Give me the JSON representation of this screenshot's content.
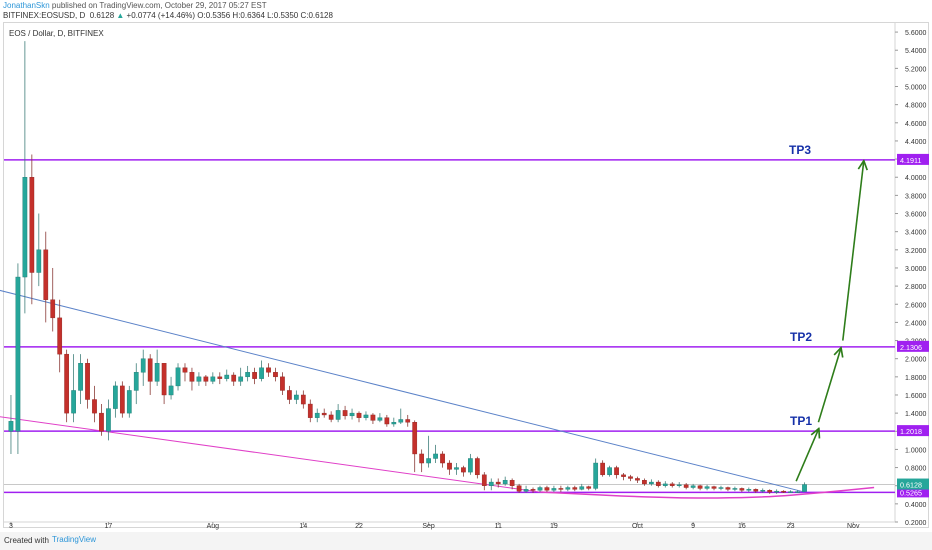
{
  "header": {
    "author": "JonathanSkn",
    "published": " published on TradingView.com, October 29, 2017 05:27 EST",
    "symbol": "BITFINEX:EOSUSD, D",
    "last": "0.6128",
    "change": "+0.0774 (+14.46%)",
    "ohlc": "O:0.5356 H:0.6364 L:0.5350 C:0.6128"
  },
  "footer": {
    "created": "Created with",
    "brand": "TradingView"
  },
  "colors": {
    "up": "#26a69a",
    "down": "#c4302b",
    "level": "#a020f0",
    "wedge_upper": "#5b82c8",
    "wedge_lower": "#e040c8",
    "arrow": "#2e7d1a",
    "tp_text": "#1530a8"
  },
  "chart_data": {
    "type": "candlestick",
    "title": "EOS / Dollar, D, BITFINEX",
    "ylim": [
      0.2,
      5.7
    ],
    "y_ticks": [
      0.2,
      0.4,
      0.6,
      0.8,
      1.0,
      1.2,
      1.4,
      1.6,
      1.8,
      2.0,
      2.2,
      2.4,
      2.6,
      2.8,
      3.0,
      3.2,
      3.4,
      3.6,
      3.8,
      4.0,
      4.2,
      4.4,
      4.6,
      4.8,
      5.0,
      5.2,
      5.4,
      5.6
    ],
    "y_tick_labels": [
      "0.2000",
      "0.4000",
      "0.6000",
      "0.8000",
      "1.0000",
      "1.2000",
      "1.4000",
      "1.6000",
      "1.8000",
      "2.0000",
      "2.2000",
      "2.4000",
      "2.6000",
      "2.8000",
      "3.0000",
      "3.2000",
      "3.4000",
      "3.6000",
      "3.8000",
      "4.0000",
      "4.2000",
      "4.4000",
      "4.6000",
      "4.8000",
      "5.0000",
      "5.2000",
      "5.4000",
      "5.6000"
    ],
    "x_range": [
      -1,
      127
    ],
    "x_ticks": [
      {
        "label": "3",
        "x": 0
      },
      {
        "label": "17",
        "x": 14
      },
      {
        "label": "Aug",
        "x": 29
      },
      {
        "label": "14",
        "x": 42
      },
      {
        "label": "22",
        "x": 50
      },
      {
        "label": "Sep",
        "x": 60
      },
      {
        "label": "11",
        "x": 70
      },
      {
        "label": "19",
        "x": 78
      },
      {
        "label": "Oct",
        "x": 90
      },
      {
        "label": "9",
        "x": 98
      },
      {
        "label": "16",
        "x": 105
      },
      {
        "label": "23",
        "x": 112
      },
      {
        "label": "Nov",
        "x": 121
      }
    ],
    "candles": [
      [
        1.2,
        1.31,
        1.6,
        0.95
      ],
      [
        1.2,
        2.9,
        3.05,
        0.95
      ],
      [
        2.9,
        4.0,
        5.5,
        2.5
      ],
      [
        4.0,
        2.95,
        4.25,
        2.6
      ],
      [
        2.95,
        3.2,
        3.6,
        2.8
      ],
      [
        3.2,
        2.65,
        3.4,
        2.4
      ],
      [
        2.65,
        2.45,
        3.0,
        2.3
      ],
      [
        2.45,
        2.05,
        2.65,
        1.85
      ],
      [
        2.05,
        1.4,
        2.1,
        1.3
      ],
      [
        1.4,
        1.65,
        2.05,
        1.3
      ],
      [
        1.65,
        1.95,
        2.05,
        1.5
      ],
      [
        1.95,
        1.55,
        2.0,
        1.45
      ],
      [
        1.55,
        1.4,
        1.7,
        1.3
      ],
      [
        1.4,
        1.2,
        1.5,
        1.15
      ],
      [
        1.2,
        1.45,
        1.55,
        1.1
      ],
      [
        1.45,
        1.7,
        1.75,
        1.35
      ],
      [
        1.7,
        1.4,
        1.75,
        1.35
      ],
      [
        1.4,
        1.65,
        1.7,
        1.35
      ],
      [
        1.65,
        1.85,
        1.95,
        1.5
      ],
      [
        1.85,
        2.0,
        2.1,
        1.7
      ],
      [
        2.0,
        1.75,
        2.05,
        1.6
      ],
      [
        1.75,
        1.95,
        2.1,
        1.7
      ],
      [
        1.95,
        1.6,
        1.95,
        1.5
      ],
      [
        1.6,
        1.7,
        1.8,
        1.55
      ],
      [
        1.7,
        1.9,
        1.95,
        1.65
      ],
      [
        1.9,
        1.85,
        1.95,
        1.75
      ],
      [
        1.85,
        1.75,
        1.9,
        1.65
      ],
      [
        1.75,
        1.8,
        1.85,
        1.7
      ],
      [
        1.8,
        1.75,
        1.82,
        1.7
      ],
      [
        1.75,
        1.8,
        1.85,
        1.72
      ],
      [
        1.8,
        1.78,
        1.85,
        1.72
      ],
      [
        1.78,
        1.82,
        1.88,
        1.75
      ],
      [
        1.82,
        1.75,
        1.85,
        1.7
      ],
      [
        1.75,
        1.8,
        1.9,
        1.7
      ],
      [
        1.8,
        1.85,
        1.92,
        1.75
      ],
      [
        1.85,
        1.78,
        1.9,
        1.72
      ],
      [
        1.78,
        1.9,
        1.98,
        1.75
      ],
      [
        1.9,
        1.85,
        1.95,
        1.8
      ],
      [
        1.85,
        1.8,
        1.9,
        1.75
      ],
      [
        1.8,
        1.65,
        1.85,
        1.6
      ],
      [
        1.65,
        1.55,
        1.7,
        1.5
      ],
      [
        1.55,
        1.6,
        1.65,
        1.5
      ],
      [
        1.6,
        1.5,
        1.65,
        1.45
      ],
      [
        1.5,
        1.35,
        1.55,
        1.3
      ],
      [
        1.35,
        1.4,
        1.45,
        1.3
      ],
      [
        1.4,
        1.38,
        1.45,
        1.35
      ],
      [
        1.38,
        1.33,
        1.42,
        1.3
      ],
      [
        1.33,
        1.43,
        1.5,
        1.3
      ],
      [
        1.43,
        1.37,
        1.48,
        1.33
      ],
      [
        1.37,
        1.4,
        1.45,
        1.33
      ],
      [
        1.4,
        1.35,
        1.42,
        1.3
      ],
      [
        1.35,
        1.38,
        1.42,
        1.32
      ],
      [
        1.38,
        1.32,
        1.4,
        1.28
      ],
      [
        1.32,
        1.35,
        1.4,
        1.3
      ],
      [
        1.35,
        1.28,
        1.38,
        1.25
      ],
      [
        1.28,
        1.3,
        1.35,
        1.25
      ],
      [
        1.3,
        1.33,
        1.45,
        1.28
      ],
      [
        1.33,
        1.3,
        1.38,
        1.25
      ],
      [
        1.3,
        0.95,
        1.32,
        0.75
      ],
      [
        0.95,
        0.85,
        1.0,
        0.75
      ],
      [
        0.85,
        0.9,
        1.15,
        0.8
      ],
      [
        0.9,
        0.95,
        1.05,
        0.85
      ],
      [
        0.95,
        0.85,
        0.98,
        0.8
      ],
      [
        0.85,
        0.78,
        0.88,
        0.72
      ],
      [
        0.78,
        0.8,
        0.85,
        0.72
      ],
      [
        0.8,
        0.75,
        0.82,
        0.7
      ],
      [
        0.75,
        0.9,
        0.95,
        0.72
      ],
      [
        0.9,
        0.72,
        0.92,
        0.68
      ],
      [
        0.72,
        0.6,
        0.75,
        0.55
      ],
      [
        0.6,
        0.64,
        0.68,
        0.55
      ],
      [
        0.64,
        0.62,
        0.68,
        0.58
      ],
      [
        0.62,
        0.66,
        0.7,
        0.6
      ],
      [
        0.66,
        0.6,
        0.68,
        0.56
      ],
      [
        0.6,
        0.54,
        0.62,
        0.52
      ],
      [
        0.54,
        0.56,
        0.6,
        0.52
      ],
      [
        0.56,
        0.55,
        0.58,
        0.52
      ],
      [
        0.55,
        0.58,
        0.6,
        0.53
      ],
      [
        0.58,
        0.55,
        0.6,
        0.53
      ],
      [
        0.55,
        0.57,
        0.6,
        0.53
      ],
      [
        0.57,
        0.56,
        0.6,
        0.53
      ],
      [
        0.56,
        0.58,
        0.6,
        0.54
      ],
      [
        0.58,
        0.56,
        0.6,
        0.54
      ],
      [
        0.56,
        0.59,
        0.62,
        0.55
      ],
      [
        0.59,
        0.57,
        0.6,
        0.55
      ],
      [
        0.57,
        0.85,
        0.9,
        0.55
      ],
      [
        0.85,
        0.72,
        0.88,
        0.7
      ],
      [
        0.72,
        0.8,
        0.82,
        0.7
      ],
      [
        0.8,
        0.72,
        0.82,
        0.68
      ],
      [
        0.72,
        0.7,
        0.74,
        0.66
      ],
      [
        0.7,
        0.68,
        0.72,
        0.65
      ],
      [
        0.68,
        0.66,
        0.7,
        0.63
      ],
      [
        0.66,
        0.62,
        0.68,
        0.6
      ],
      [
        0.62,
        0.64,
        0.67,
        0.6
      ],
      [
        0.64,
        0.6,
        0.66,
        0.58
      ],
      [
        0.6,
        0.62,
        0.65,
        0.58
      ],
      [
        0.62,
        0.6,
        0.64,
        0.58
      ],
      [
        0.6,
        0.61,
        0.64,
        0.58
      ],
      [
        0.61,
        0.58,
        0.63,
        0.56
      ],
      [
        0.58,
        0.6,
        0.62,
        0.56
      ],
      [
        0.6,
        0.57,
        0.61,
        0.55
      ],
      [
        0.57,
        0.59,
        0.61,
        0.55
      ],
      [
        0.59,
        0.57,
        0.6,
        0.55
      ],
      [
        0.57,
        0.58,
        0.6,
        0.55
      ],
      [
        0.58,
        0.56,
        0.59,
        0.54
      ],
      [
        0.56,
        0.57,
        0.59,
        0.54
      ],
      [
        0.57,
        0.55,
        0.58,
        0.53
      ],
      [
        0.55,
        0.56,
        0.58,
        0.53
      ],
      [
        0.56,
        0.54,
        0.57,
        0.52
      ],
      [
        0.54,
        0.55,
        0.57,
        0.52
      ],
      [
        0.55,
        0.53,
        0.56,
        0.51
      ],
      [
        0.53,
        0.54,
        0.56,
        0.51
      ],
      [
        0.54,
        0.53,
        0.55,
        0.52
      ],
      [
        0.53,
        0.535,
        0.55,
        0.52
      ],
      [
        0.535,
        0.5356,
        0.55,
        0.52
      ],
      [
        0.5356,
        0.6128,
        0.6364,
        0.535
      ]
    ],
    "levels": [
      {
        "label": "TP3",
        "value": 4.1911,
        "tag": "4.1911"
      },
      {
        "label": "TP2",
        "value": 2.1306,
        "tag": "2.1306"
      },
      {
        "label": "TP1",
        "value": 1.2018,
        "tag": "1.2018"
      },
      {
        "label": "",
        "value": 0.5265,
        "tag": "0.5265"
      }
    ],
    "last_price": {
      "value": 0.6128,
      "tag": "0.6128"
    },
    "trendlines": [
      {
        "name": "upper",
        "from": [
          -2.5,
          2.77
        ],
        "to": [
          114,
          0.53
        ]
      },
      {
        "name": "lower",
        "from": [
          -2.5,
          1.37
        ],
        "to": [
          76,
          0.53
        ]
      }
    ],
    "support_curve": {
      "name": "rounded-bottom",
      "points": [
        [
          76,
          0.53
        ],
        [
          95,
          0.46
        ],
        [
          108,
          0.47
        ],
        [
          116,
          0.52
        ],
        [
          124,
          0.58
        ]
      ]
    },
    "arrows": [
      {
        "from": [
          112.8,
          0.65
        ],
        "to": [
          116,
          1.22
        ]
      },
      {
        "from": [
          116,
          1.3
        ],
        "to": [
          119.2,
          2.11
        ]
      },
      {
        "from": [
          119.5,
          2.2
        ],
        "to": [
          122.5,
          4.17
        ]
      }
    ]
  }
}
